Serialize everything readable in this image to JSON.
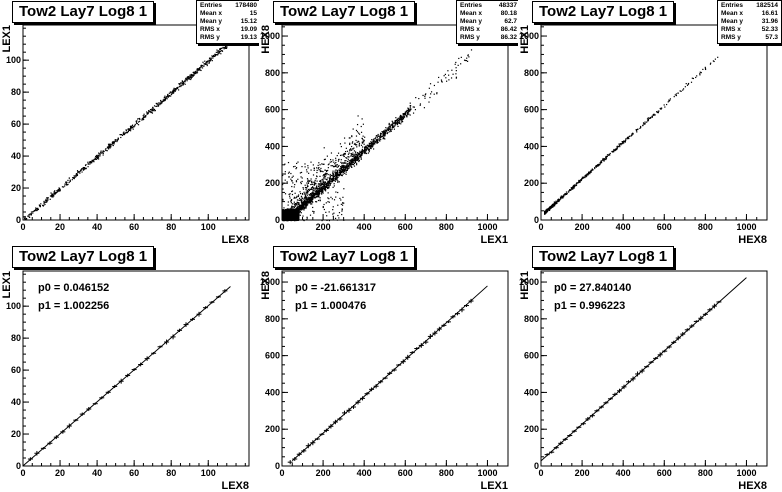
{
  "pads": [
    {
      "title": "Tow2 Lay7 Log8 1",
      "stats": [
        {
          "label": "Entries",
          "value": "178480"
        },
        {
          "label": "Mean x",
          "value": "15"
        },
        {
          "label": "Mean y",
          "value": "15.12"
        },
        {
          "label": "RMS x",
          "value": "19.09"
        },
        {
          "label": "RMS y",
          "value": "19.13"
        }
      ]
    },
    {
      "title": "Tow2 Lay7 Log8 1",
      "stats": [
        {
          "label": "Entries",
          "value": "48337"
        },
        {
          "label": "Mean x",
          "value": "80.18"
        },
        {
          "label": "Mean y",
          "value": "62.7"
        },
        {
          "label": "RMS x",
          "value": "86.42"
        },
        {
          "label": "RMS y",
          "value": "86.32"
        }
      ]
    },
    {
      "title": "Tow2 Lay7 Log8 1",
      "stats": [
        {
          "label": "Entries",
          "value": "182514"
        },
        {
          "label": "Mean x",
          "value": "16.61"
        },
        {
          "label": "Mean y",
          "value": "31.96"
        },
        {
          "label": "RMS x",
          "value": "52.33"
        },
        {
          "label": "RMS y",
          "value": "57.3"
        }
      ]
    },
    {
      "title": "Tow2 Lay7 Log8 1",
      "fit": [
        {
          "label": "p0 = 0.046152"
        },
        {
          "label": "p1 = 1.002256"
        }
      ]
    },
    {
      "title": "Tow2 Lay7 Log8 1",
      "fit": [
        {
          "label": "p0 = -21.661317"
        },
        {
          "label": "p1 = 1.000476"
        }
      ]
    },
    {
      "title": "Tow2 Lay7 Log8 1",
      "fit": [
        {
          "label": "p0 = 27.840140"
        },
        {
          "label": "p1 = 0.996223"
        }
      ]
    }
  ],
  "chart_data": [
    {
      "type": "scatter",
      "title": "Tow2 Lay7 Log8 1",
      "xlabel": "LEX8",
      "ylabel": "LEX1",
      "xlim": [
        0,
        122
      ],
      "ylim": [
        0,
        122
      ],
      "xticks": [
        0,
        20,
        40,
        60,
        80,
        100
      ],
      "yticks": [
        0,
        20,
        40,
        60,
        80,
        100
      ],
      "series": [
        {
          "relation": "y = x",
          "points": [
            [
              0,
              0
            ],
            [
              20,
              20
            ],
            [
              40,
              40
            ],
            [
              60,
              60
            ],
            [
              80,
              80
            ],
            [
              100,
              100
            ],
            [
              110,
              110
            ]
          ]
        }
      ]
    },
    {
      "type": "scatter",
      "title": "Tow2 Lay7 Log8 1",
      "xlabel": "LEX1",
      "ylabel": "HEX8",
      "xlim": [
        0,
        1100
      ],
      "ylim": [
        0,
        1060
      ],
      "xticks": [
        0,
        200,
        400,
        600,
        800,
        1000
      ],
      "yticks": [
        0,
        200,
        400,
        600,
        800,
        1000
      ],
      "series": [
        {
          "relation": "y ≈ x - 22",
          "points": [
            [
              50,
              30
            ],
            [
              200,
              180
            ],
            [
              400,
              380
            ],
            [
              600,
              580
            ],
            [
              770,
              740
            ],
            [
              900,
              910
            ]
          ]
        }
      ]
    },
    {
      "type": "scatter",
      "title": "Tow2 Lay7 Log8 1",
      "xlabel": "HEX8",
      "ylabel": "HEX1",
      "xlim": [
        0,
        1100
      ],
      "ylim": [
        0,
        1060
      ],
      "xticks": [
        0,
        200,
        400,
        600,
        800,
        1000
      ],
      "yticks": [
        0,
        200,
        400,
        600,
        800,
        1000
      ],
      "series": [
        {
          "relation": "y ≈ x + 28",
          "points": [
            [
              20,
              50
            ],
            [
              100,
              130
            ],
            [
              200,
              230
            ],
            [
              300,
              330
            ],
            [
              400,
              430
            ],
            [
              500,
              530
            ],
            [
              600,
              630
            ]
          ]
        }
      ]
    },
    {
      "type": "line",
      "title": "Tow2 Lay7 Log8 1",
      "xlabel": "LEX8",
      "ylabel": "LEX1",
      "xlim": [
        0,
        122
      ],
      "ylim": [
        0,
        122
      ],
      "xticks": [
        0,
        20,
        40,
        60,
        80,
        100
      ],
      "yticks": [
        0,
        20,
        40,
        60,
        80,
        100
      ],
      "fit": {
        "p0": 0.046152,
        "p1": 1.002256,
        "xrange": [
          0,
          112
        ]
      },
      "points_x_range": [
        4,
        112
      ]
    },
    {
      "type": "line",
      "title": "Tow2 Lay7 Log8 1",
      "xlabel": "LEX1",
      "ylabel": "HEX8",
      "xlim": [
        0,
        1100
      ],
      "ylim": [
        0,
        1060
      ],
      "xticks": [
        0,
        200,
        400,
        600,
        800,
        1000
      ],
      "yticks": [
        0,
        200,
        400,
        600,
        800,
        1000
      ],
      "fit": {
        "p0": -21.661317,
        "p1": 1.000476,
        "xrange": [
          50,
          1000
        ]
      },
      "points_x_range": [
        40,
        920
      ]
    },
    {
      "type": "line",
      "title": "Tow2 Lay7 Log8 1",
      "xlabel": "HEX8",
      "ylabel": "HEX1",
      "xlim": [
        0,
        1100
      ],
      "ylim": [
        0,
        1060
      ],
      "xticks": [
        0,
        200,
        400,
        600,
        800,
        1000
      ],
      "yticks": [
        0,
        200,
        400,
        600,
        800,
        1000
      ],
      "fit": {
        "p0": 27.84014,
        "p1": 0.996223,
        "xrange": [
          0,
          1000
        ]
      },
      "points_x_range": [
        30,
        880
      ]
    }
  ]
}
